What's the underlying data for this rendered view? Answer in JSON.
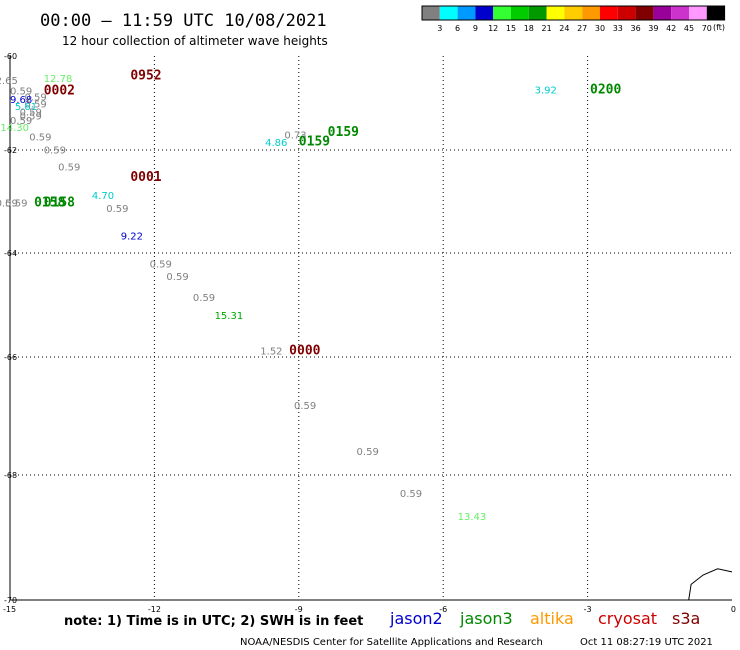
{
  "header": {
    "title": "00:00 – 11:59 UTC 10/08/2021",
    "subtitle": "12 hour collection of altimeter wave heights"
  },
  "colorbar": {
    "labels": [
      "3",
      "6",
      "9",
      "12",
      "15",
      "18",
      "21",
      "24",
      "27",
      "30",
      "33",
      "36",
      "39",
      "42",
      "45",
      "70"
    ],
    "unit": "(ft)",
    "colors": [
      "#808080",
      "#00ffff",
      "#0099ff",
      "#0000cc",
      "#33ff33",
      "#00cc00",
      "#009900",
      "#ffff00",
      "#ffcc00",
      "#ff9900",
      "#ff0000",
      "#cc0000",
      "#800000",
      "#990099",
      "#cc33cc",
      "#ff99ff",
      "#000000"
    ]
  },
  "chart_data": {
    "type": "scatter",
    "title": "00:00 – 11:59 UTC 10/08/2021",
    "subtitle": "12 hour collection of altimeter wave heights",
    "xlim": [
      -15,
      0
    ],
    "ylim": [
      -70,
      -60
    ],
    "x_ticks": [
      "-15",
      "-12",
      "-9",
      "-6",
      "-3",
      "0"
    ],
    "y_ticks": [
      "-60",
      "-62",
      "-64",
      "-66",
      "-68",
      "-70"
    ],
    "grid": true,
    "wave_heights": [
      {
        "x": -14.3,
        "y": -60.55,
        "value": "12.78",
        "color": "#66ee66"
      },
      {
        "x": -14.7,
        "y": -60.95,
        "value": "0.59",
        "color": "#808080"
      },
      {
        "x": -15.3,
        "y": -60.6,
        "value": "2.65",
        "color": "#808080"
      },
      {
        "x": -15.0,
        "y": -60.82,
        "value": "0.59",
        "color": "#808080"
      },
      {
        "x": -15.0,
        "y": -61.0,
        "value": "9.68",
        "color": "#0000cc"
      },
      {
        "x": -14.7,
        "y": -61.1,
        "value": "0.59",
        "color": "#808080"
      },
      {
        "x": -14.9,
        "y": -61.15,
        "value": "5.61",
        "color": "#00cccc"
      },
      {
        "x": -14.8,
        "y": -61.27,
        "value": "0.59",
        "color": "#808080"
      },
      {
        "x": -14.8,
        "y": -61.35,
        "value": "0.59",
        "color": "#808080"
      },
      {
        "x": -15.0,
        "y": -61.45,
        "value": "0.59",
        "color": "#808080"
      },
      {
        "x": -15.2,
        "y": -61.6,
        "value": "14.30",
        "color": "#66ee66"
      },
      {
        "x": -14.6,
        "y": -61.8,
        "value": "0.59",
        "color": "#808080"
      },
      {
        "x": -14.3,
        "y": -62.07,
        "value": "0.59",
        "color": "#808080"
      },
      {
        "x": -14.0,
        "y": -62.4,
        "value": "0.59",
        "color": "#808080"
      },
      {
        "x": -13.3,
        "y": -62.95,
        "value": "4.70",
        "color": "#00cccc"
      },
      {
        "x": -13.0,
        "y": -63.2,
        "value": "0.59",
        "color": "#808080"
      },
      {
        "x": -15.3,
        "y": -63.1,
        "value": "0.59",
        "color": "#808080"
      },
      {
        "x": -15.1,
        "y": -63.1,
        "value": "0.59",
        "color": "#808080"
      },
      {
        "x": -12.7,
        "y": -63.74,
        "value": "9.22",
        "color": "#0000cc"
      },
      {
        "x": -12.1,
        "y": -64.28,
        "value": "0.59",
        "color": "#808080"
      },
      {
        "x": -11.75,
        "y": -64.52,
        "value": "0.59",
        "color": "#808080"
      },
      {
        "x": -11.2,
        "y": -64.92,
        "value": "0.59",
        "color": "#808080"
      },
      {
        "x": -10.75,
        "y": -65.27,
        "value": "15.31",
        "color": "#00aa00"
      },
      {
        "x": -9.8,
        "y": -65.95,
        "value": "1.52",
        "color": "#808080"
      },
      {
        "x": -9.1,
        "y": -66.88,
        "value": "0.59",
        "color": "#808080"
      },
      {
        "x": -7.8,
        "y": -67.66,
        "value": "0.59",
        "color": "#808080"
      },
      {
        "x": -6.9,
        "y": -68.35,
        "value": "0.59",
        "color": "#808080"
      },
      {
        "x": -5.7,
        "y": -68.72,
        "value": "13.43",
        "color": "#66ee66"
      },
      {
        "x": -9.3,
        "y": -61.75,
        "value": "0.73",
        "color": "#808080"
      },
      {
        "x": -9.7,
        "y": -61.92,
        "value": "4.86",
        "color": "#00cccc"
      },
      {
        "x": -4.1,
        "y": -60.8,
        "value": "3.92",
        "color": "#00cccc"
      }
    ],
    "pass_times": [
      {
        "x": -12.5,
        "y": -60.5,
        "value": "0952",
        "color": "#800000"
      },
      {
        "x": -14.3,
        "y": -60.82,
        "value": "0002",
        "color": "#800000"
      },
      {
        "x": -12.5,
        "y": -62.6,
        "value": "0001",
        "color": "#800000"
      },
      {
        "x": -14.5,
        "y": -63.1,
        "value": "0158",
        "color": "#008800"
      },
      {
        "x": -14.3,
        "y": -63.1,
        "value": "0158",
        "color": "#008800"
      },
      {
        "x": -8.4,
        "y": -61.7,
        "value": "0159",
        "color": "#008800"
      },
      {
        "x": -9.0,
        "y": -61.9,
        "value": "0159",
        "color": "#008800"
      },
      {
        "x": -2.95,
        "y": -60.8,
        "value": "0200",
        "color": "#008800"
      },
      {
        "x": -9.2,
        "y": -65.95,
        "value": "0000",
        "color": "#800000"
      }
    ],
    "land": [
      {
        "x": 0,
        "y": -69.55
      },
      {
        "x": -0.3,
        "y": -69.5
      },
      {
        "x": -0.6,
        "y": -69.6
      },
      {
        "x": -0.85,
        "y": -69.75
      },
      {
        "x": -0.9,
        "y": -70
      }
    ]
  },
  "footer": {
    "note": "note: 1) Time is in UTC; 2) SWH is in feet",
    "satellites": [
      {
        "name": "jason2",
        "color": "#0000cc"
      },
      {
        "name": "jason3",
        "color": "#008800"
      },
      {
        "name": "altika",
        "color": "#ff9900"
      },
      {
        "name": "cryosat",
        "color": "#cc0000"
      },
      {
        "name": "s3a",
        "color": "#800000"
      }
    ],
    "credit": "NOAA/NESDIS Center for Satellite Applications and Research",
    "timestamp": "Oct 11 08:27:19 UTC 2021"
  }
}
